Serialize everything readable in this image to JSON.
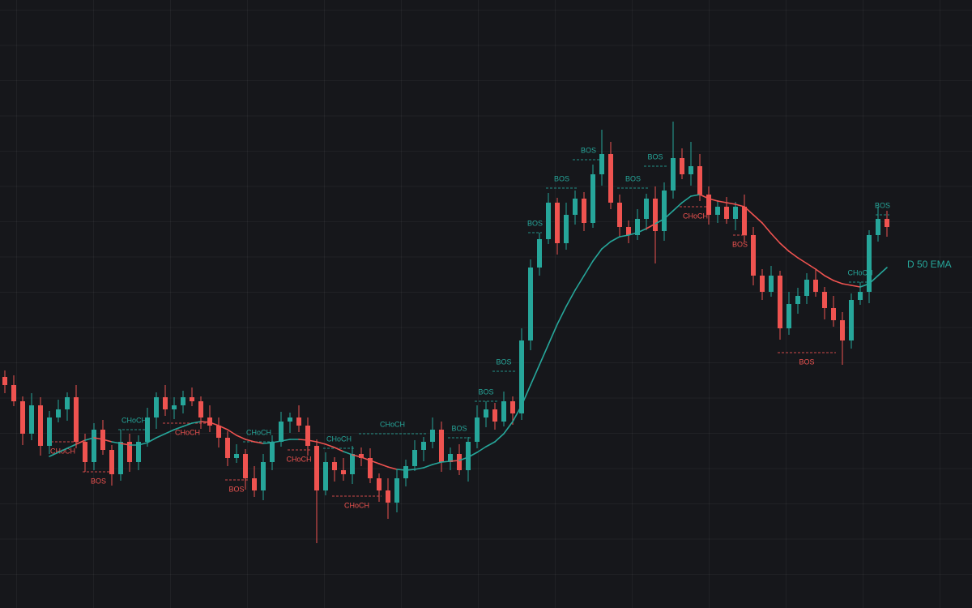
{
  "chart_data": {
    "type": "candlestick",
    "ylim": [
      0,
      750
    ],
    "up_color": "#26a69a",
    "down_color": "#ef5350",
    "open": [
      285,
      275,
      255,
      215,
      250,
      200,
      235,
      245,
      260,
      205,
      180,
      220,
      195,
      165,
      205,
      180,
      205,
      235,
      260,
      245,
      250,
      260,
      255,
      235,
      225,
      210,
      185,
      190,
      160,
      145,
      180,
      205,
      230,
      235,
      225,
      200,
      145,
      180,
      170,
      165,
      190,
      185,
      160,
      145,
      130,
      160,
      175,
      195,
      205,
      220,
      180,
      190,
      170,
      205,
      235,
      245,
      230,
      255,
      240,
      330,
      420,
      455,
      500,
      450,
      485,
      505,
      475,
      535,
      560,
      500,
      470,
      460,
      480,
      505,
      465,
      515,
      555,
      535,
      545,
      510,
      485,
      495,
      480,
      495,
      460,
      410,
      390,
      410,
      345,
      375,
      385,
      405,
      390,
      370,
      355,
      330,
      380,
      390,
      460,
      480
    ],
    "high": [
      293,
      287,
      261,
      265,
      260,
      243,
      257,
      266,
      275,
      215,
      228,
      232,
      201,
      220,
      215,
      213,
      247,
      266,
      275,
      260,
      268,
      272,
      261,
      250,
      235,
      218,
      202,
      196,
      175,
      190,
      213,
      242,
      241,
      250,
      235,
      208,
      192,
      186,
      185,
      200,
      198,
      197,
      166,
      160,
      170,
      183,
      207,
      211,
      235,
      230,
      198,
      202,
      211,
      250,
      255,
      253,
      267,
      261,
      345,
      430,
      463,
      512,
      506,
      500,
      515,
      513,
      547,
      590,
      575,
      510,
      478,
      492,
      511,
      520,
      525,
      600,
      567,
      575,
      560,
      520,
      503,
      507,
      501,
      510,
      470,
      418,
      422,
      416,
      390,
      395,
      413,
      417,
      396,
      385,
      365,
      388,
      402,
      466,
      495,
      490
    ],
    "low": [
      265,
      249,
      201,
      207,
      188,
      190,
      229,
      231,
      197,
      168,
      170,
      189,
      151,
      157,
      168,
      170,
      199,
      221,
      237,
      233,
      240,
      249,
      221,
      217,
      198,
      175,
      179,
      146,
      137,
      133,
      170,
      199,
      216,
      217,
      188,
      80,
      139,
      156,
      157,
      153,
      175,
      154,
      131,
      110,
      118,
      150,
      169,
      181,
      197,
      168,
      170,
      164,
      156,
      197,
      223,
      220,
      224,
      226,
      232,
      318,
      410,
      449,
      436,
      442,
      473,
      465,
      469,
      521,
      492,
      458,
      450,
      454,
      466,
      425,
      453,
      505,
      529,
      521,
      502,
      473,
      475,
      474,
      466,
      452,
      398,
      380,
      384,
      331,
      337,
      363,
      375,
      384,
      356,
      347,
      300,
      320,
      374,
      376,
      452,
      458
    ],
    "close": [
      275,
      255,
      215,
      250,
      200,
      235,
      245,
      260,
      205,
      180,
      220,
      195,
      165,
      205,
      180,
      205,
      235,
      260,
      245,
      250,
      260,
      255,
      235,
      225,
      210,
      185,
      190,
      160,
      145,
      180,
      205,
      230,
      235,
      225,
      200,
      145,
      180,
      170,
      165,
      190,
      185,
      160,
      145,
      130,
      160,
      175,
      195,
      205,
      220,
      180,
      190,
      170,
      205,
      235,
      245,
      230,
      255,
      240,
      330,
      420,
      455,
      500,
      450,
      485,
      505,
      475,
      535,
      560,
      500,
      470,
      460,
      480,
      505,
      465,
      515,
      555,
      535,
      545,
      510,
      485,
      495,
      480,
      495,
      460,
      410,
      390,
      410,
      345,
      375,
      385,
      405,
      390,
      370,
      355,
      330,
      380,
      390,
      460,
      480,
      470
    ],
    "ema": {
      "name": "D 50 EMA",
      "values": [
        null,
        null,
        null,
        null,
        null,
        187,
        192,
        197,
        202,
        207,
        210,
        208,
        205,
        203,
        201,
        201,
        204,
        210,
        215,
        220,
        224,
        228,
        230,
        229,
        225,
        220,
        213,
        208,
        205,
        203,
        204,
        206,
        208,
        208,
        207,
        205,
        202,
        198,
        193,
        189,
        186,
        182,
        178,
        174,
        171,
        170,
        171,
        173,
        177,
        180,
        181,
        182,
        186,
        192,
        199,
        205,
        215,
        230,
        250,
        275,
        300,
        325,
        350,
        372,
        392,
        410,
        428,
        443,
        452,
        458,
        460,
        463,
        468,
        474,
        480,
        490,
        500,
        508,
        510,
        505,
        502,
        500,
        498,
        495,
        485,
        475,
        462,
        450,
        440,
        432,
        425,
        418,
        410,
        404,
        400,
        398,
        396,
        400,
        410,
        420
      ]
    },
    "annotations": [
      {
        "label": "CHoCH",
        "level": 205,
        "start": 5,
        "end": 8,
        "color": "#ef5350"
      },
      {
        "label": "BOS",
        "level": 168,
        "start": 9,
        "end": 12,
        "color": "#ef5350"
      },
      {
        "label": "CHoCH",
        "level": 220,
        "start": 13,
        "end": 16,
        "color": "#26a69a"
      },
      {
        "label": "CHoCH",
        "level": 228,
        "start": 18,
        "end": 23,
        "color": "#ef5350"
      },
      {
        "label": "BOS",
        "level": 158,
        "start": 25,
        "end": 27,
        "color": "#ef5350"
      },
      {
        "label": "CHoCH",
        "level": 205,
        "start": 27,
        "end": 30,
        "color": "#26a69a"
      },
      {
        "label": "CHoCH",
        "level": 195,
        "start": 32,
        "end": 34,
        "color": "#ef5350"
      },
      {
        "label": "CHoCH",
        "level": 197,
        "start": 36,
        "end": 39,
        "color": "#26a69a"
      },
      {
        "label": "CHoCH",
        "level": 138,
        "start": 37,
        "end": 42,
        "color": "#ef5350"
      },
      {
        "label": "CHoCH",
        "level": 215,
        "start": 40,
        "end": 47,
        "color": "#26a69a"
      },
      {
        "label": "BOS",
        "level": 210,
        "start": 50,
        "end": 52,
        "color": "#26a69a"
      },
      {
        "label": "BOS",
        "level": 255,
        "start": 53,
        "end": 55,
        "color": "#26a69a"
      },
      {
        "label": "BOS",
        "level": 292,
        "start": 55,
        "end": 57,
        "color": "#26a69a"
      },
      {
        "label": "BOS",
        "level": 463,
        "start": 59,
        "end": 60,
        "color": "#26a69a"
      },
      {
        "label": "BOS",
        "level": 518,
        "start": 61,
        "end": 64,
        "color": "#26a69a"
      },
      {
        "label": "BOS",
        "level": 553,
        "start": 64,
        "end": 67,
        "color": "#26a69a"
      },
      {
        "label": "BOS",
        "level": 518,
        "start": 69,
        "end": 72,
        "color": "#26a69a"
      },
      {
        "label": "BOS",
        "level": 545,
        "start": 72,
        "end": 74,
        "color": "#26a69a"
      },
      {
        "label": "CHoCH",
        "level": 495,
        "start": 76,
        "end": 79,
        "color": "#ef5350"
      },
      {
        "label": "BOS",
        "level": 460,
        "start": 82,
        "end": 83,
        "color": "#ef5350"
      },
      {
        "label": "BOS",
        "level": 315,
        "start": 87,
        "end": 93,
        "color": "#ef5350"
      },
      {
        "label": "CHoCH",
        "level": 402,
        "start": 95,
        "end": 97,
        "color": "#26a69a"
      },
      {
        "label": "BOS",
        "level": 485,
        "start": 98,
        "end": 99,
        "color": "#26a69a"
      }
    ]
  }
}
